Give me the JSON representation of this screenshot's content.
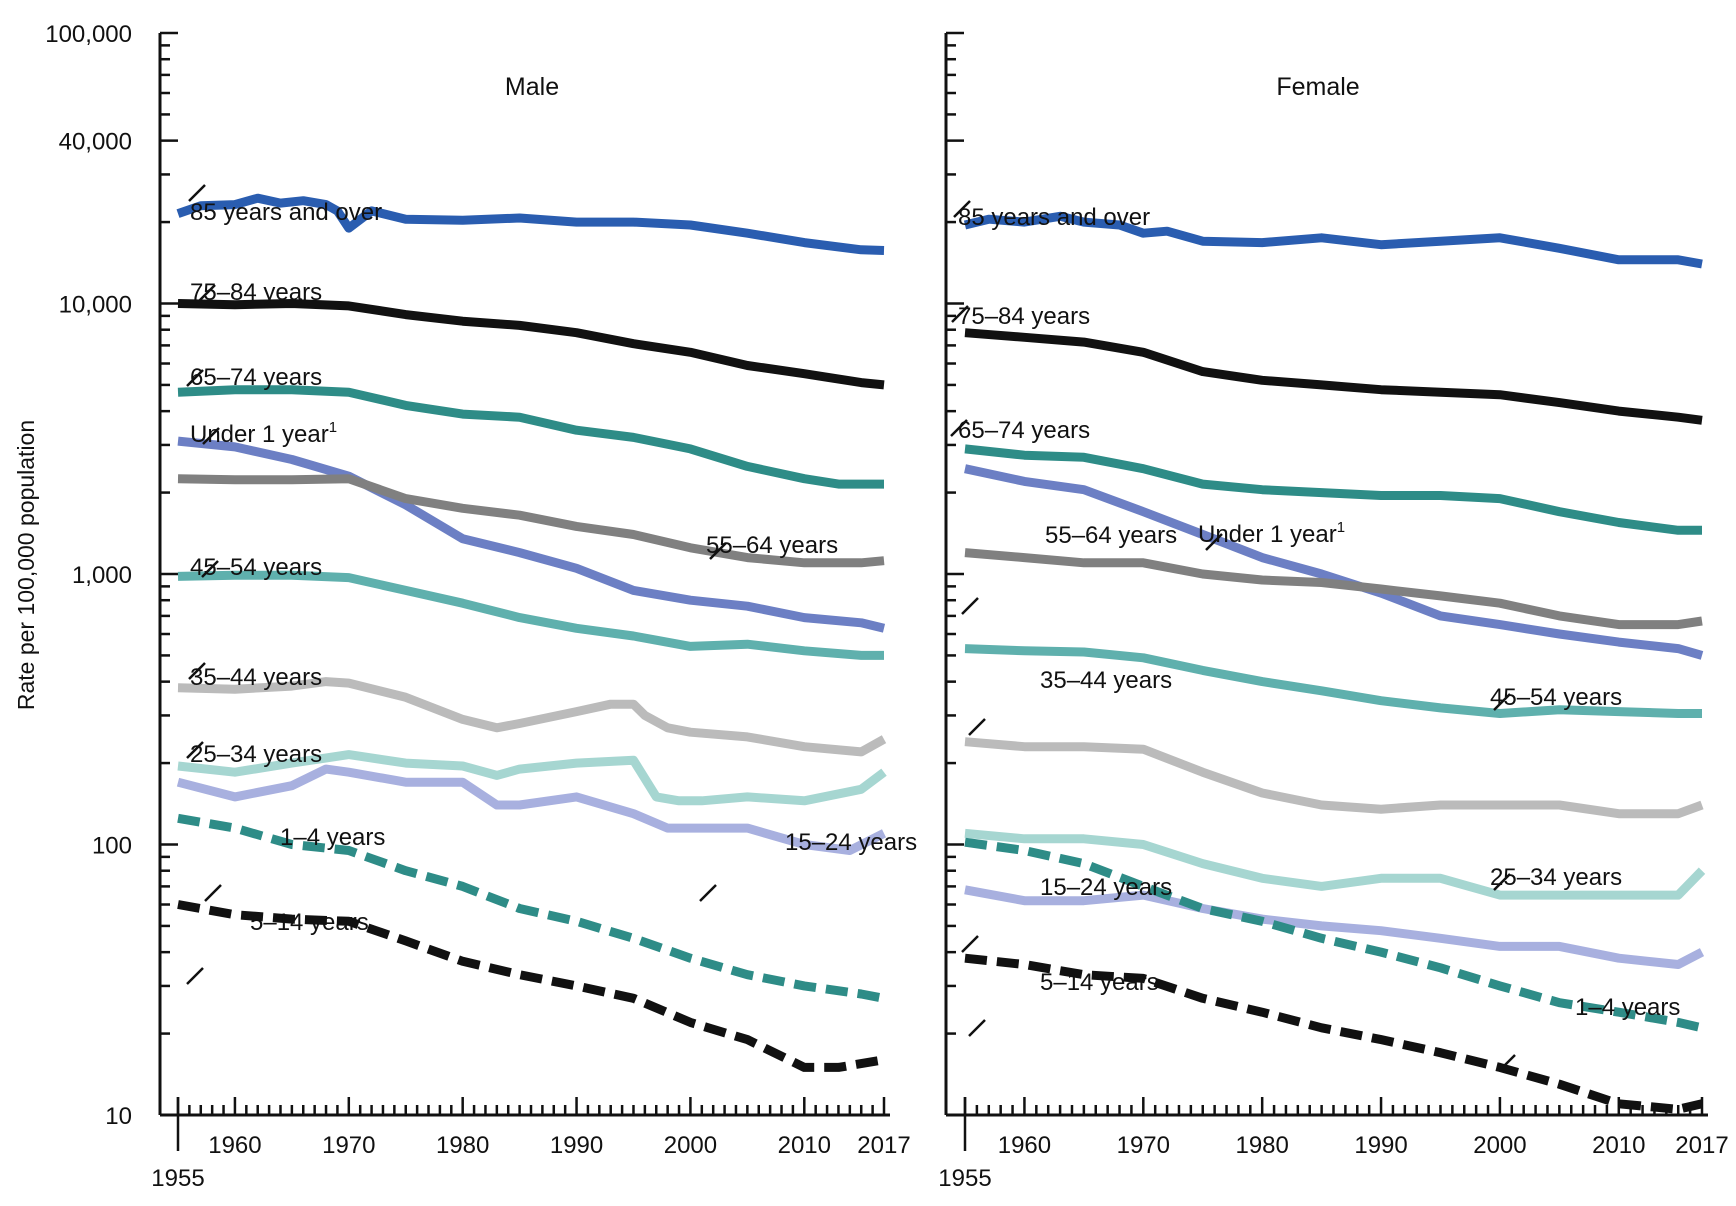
{
  "ylabel": "Rate per 100,000 population",
  "y_tick_labels": [
    "10",
    "100",
    "1,000",
    "10,000",
    "40,000",
    "100,000"
  ],
  "x_tick_labels": [
    "1955",
    "1960",
    "1970",
    "1980",
    "1990",
    "2000",
    "2010",
    "2017"
  ],
  "colors": {
    "85_and_over": "#2a5db0",
    "75_84": "#111111",
    "65_74": "#2e8c87",
    "55_64": "#808080",
    "45_54": "#5fb0ad",
    "35_44": "#bbbbbb",
    "25_34": "#a6d6d1",
    "15_24": "#a8b0df",
    "under_1": "#6c7fc4",
    "1_4": "#2e8c87",
    "5_14": "#111111"
  },
  "chart_data": [
    {
      "type": "line",
      "title": "Male",
      "ylabel": "Rate per 100,000 population",
      "yscale": "log",
      "xlim": [
        1955,
        2017
      ],
      "ylim": [
        10,
        100000
      ],
      "grid": false,
      "series": [
        {
          "name": "85 years and over",
          "style": "solid",
          "color_key": "85_and_over",
          "x": [
            1955,
            1957,
            1960,
            1962,
            1964,
            1966,
            1968,
            1969,
            1970,
            1972,
            1975,
            1980,
            1985,
            1990,
            1995,
            2000,
            2005,
            2010,
            2015,
            2017
          ],
          "y": [
            21500,
            23000,
            23200,
            24500,
            23500,
            24000,
            23200,
            22000,
            19000,
            22000,
            20500,
            20300,
            20700,
            20000,
            20000,
            19500,
            18200,
            16800,
            15800,
            15700
          ]
        },
        {
          "name": "75–84 years",
          "style": "solid",
          "color_key": "75_84",
          "x": [
            1955,
            1960,
            1965,
            1970,
            1975,
            1980,
            1985,
            1990,
            1995,
            2000,
            2005,
            2010,
            2015,
            2017
          ],
          "y": [
            10000,
            9900,
            10000,
            9800,
            9100,
            8600,
            8300,
            7800,
            7100,
            6600,
            5900,
            5500,
            5100,
            5000
          ]
        },
        {
          "name": "65–74 years",
          "style": "solid",
          "color_key": "65_74",
          "x": [
            1955,
            1960,
            1965,
            1970,
            1975,
            1980,
            1985,
            1990,
            1995,
            2000,
            2005,
            2010,
            2013,
            2017
          ],
          "y": [
            4700,
            4800,
            4800,
            4700,
            4200,
            3900,
            3800,
            3400,
            3200,
            2900,
            2500,
            2250,
            2150,
            2150
          ]
        },
        {
          "name": "Under 1 year¹",
          "style": "solid",
          "color_key": "under_1",
          "x": [
            1955,
            1960,
            1965,
            1970,
            1975,
            1980,
            1985,
            1990,
            1995,
            2000,
            2005,
            2010,
            2015,
            2017
          ],
          "y": [
            3100,
            2950,
            2650,
            2300,
            1800,
            1350,
            1200,
            1050,
            870,
            800,
            760,
            690,
            660,
            630
          ]
        },
        {
          "name": "55–64 years",
          "style": "solid",
          "color_key": "55_64",
          "x": [
            1955,
            1960,
            1965,
            1970,
            1975,
            1980,
            1985,
            1990,
            1995,
            2000,
            2005,
            2010,
            2015,
            2017
          ],
          "y": [
            2250,
            2230,
            2230,
            2250,
            1900,
            1750,
            1650,
            1500,
            1400,
            1250,
            1150,
            1100,
            1100,
            1120
          ]
        },
        {
          "name": "45–54 years",
          "style": "solid",
          "color_key": "45_54",
          "x": [
            1955,
            1960,
            1965,
            1970,
            1975,
            1980,
            1985,
            1990,
            1995,
            2000,
            2005,
            2010,
            2015,
            2017
          ],
          "y": [
            980,
            990,
            990,
            970,
            870,
            780,
            690,
            630,
            590,
            540,
            550,
            520,
            500,
            500
          ]
        },
        {
          "name": "35–44 years",
          "style": "solid",
          "color_key": "35_44",
          "x": [
            1955,
            1960,
            1965,
            1968,
            1970,
            1975,
            1980,
            1983,
            1985,
            1990,
            1993,
            1995,
            1996,
            1998,
            2000,
            2005,
            2010,
            2015,
            2017
          ],
          "y": [
            380,
            375,
            385,
            400,
            395,
            350,
            290,
            270,
            280,
            310,
            330,
            330,
            300,
            270,
            260,
            250,
            230,
            220,
            245
          ]
        },
        {
          "name": "25–34 years",
          "style": "solid",
          "color_key": "25_34",
          "x": [
            1955,
            1960,
            1965,
            1970,
            1975,
            1980,
            1983,
            1985,
            1990,
            1995,
            1997,
            1999,
            2001,
            2005,
            2010,
            2015,
            2017
          ],
          "y": [
            195,
            185,
            200,
            215,
            200,
            195,
            180,
            190,
            200,
            205,
            150,
            145,
            145,
            150,
            145,
            160,
            185
          ]
        },
        {
          "name": "15–24 years",
          "style": "solid",
          "color_key": "15_24",
          "x": [
            1955,
            1960,
            1965,
            1968,
            1970,
            1975,
            1980,
            1983,
            1985,
            1990,
            1995,
            1998,
            2000,
            2005,
            2010,
            2014,
            2017
          ],
          "y": [
            170,
            150,
            165,
            190,
            185,
            170,
            170,
            140,
            140,
            150,
            130,
            115,
            115,
            115,
            100,
            95,
            110
          ]
        },
        {
          "name": "1–4 years",
          "style": "dashed",
          "color_key": "1_4",
          "x": [
            1955,
            1960,
            1965,
            1970,
            1975,
            1980,
            1985,
            1990,
            1995,
            2000,
            2005,
            2010,
            2015,
            2017
          ],
          "y": [
            125,
            115,
            100,
            95,
            80,
            70,
            58,
            52,
            45,
            38,
            33,
            30,
            28,
            27
          ]
        },
        {
          "name": "5–14 years",
          "style": "dashed",
          "color_key": "5_14",
          "x": [
            1955,
            1960,
            1965,
            1970,
            1975,
            1980,
            1985,
            1990,
            1995,
            2000,
            2005,
            2010,
            2013,
            2017
          ],
          "y": [
            60,
            55,
            53,
            52,
            44,
            37,
            33,
            30,
            27,
            22,
            19,
            15,
            15,
            16
          ]
        }
      ]
    },
    {
      "type": "line",
      "title": "Female",
      "ylabel": "Rate per 100,000 population",
      "yscale": "log",
      "xlim": [
        1955,
        2017
      ],
      "ylim": [
        10,
        100000
      ],
      "grid": false,
      "series": [
        {
          "name": "85 years and over",
          "style": "solid",
          "color_key": "85_and_over",
          "x": [
            1955,
            1957,
            1960,
            1963,
            1965,
            1968,
            1970,
            1972,
            1975,
            1980,
            1985,
            1990,
            1995,
            2000,
            2005,
            2010,
            2015,
            2017
          ],
          "y": [
            19500,
            20500,
            20000,
            21000,
            20000,
            19500,
            18200,
            18500,
            17000,
            16800,
            17500,
            16500,
            17000,
            17500,
            16000,
            14500,
            14500,
            14000
          ]
        },
        {
          "name": "75–84 years",
          "style": "solid",
          "color_key": "75_84",
          "x": [
            1955,
            1960,
            1965,
            1970,
            1975,
            1980,
            1985,
            1990,
            1995,
            2000,
            2005,
            2010,
            2015,
            2017
          ],
          "y": [
            7800,
            7500,
            7200,
            6600,
            5600,
            5200,
            5000,
            4800,
            4700,
            4600,
            4300,
            4000,
            3800,
            3700
          ]
        },
        {
          "name": "65–74 years",
          "style": "solid",
          "color_key": "65_74",
          "x": [
            1955,
            1960,
            1965,
            1970,
            1975,
            1980,
            1985,
            1990,
            1995,
            2000,
            2005,
            2010,
            2015,
            2017
          ],
          "y": [
            2900,
            2750,
            2700,
            2450,
            2150,
            2050,
            2000,
            1950,
            1950,
            1900,
            1700,
            1550,
            1450,
            1450
          ]
        },
        {
          "name": "Under 1 year¹",
          "style": "solid",
          "color_key": "under_1",
          "x": [
            1955,
            1960,
            1965,
            1970,
            1975,
            1980,
            1985,
            1990,
            1995,
            2000,
            2005,
            2010,
            2015,
            2017
          ],
          "y": [
            2450,
            2200,
            2050,
            1700,
            1400,
            1150,
            1000,
            850,
            700,
            650,
            600,
            560,
            530,
            500
          ]
        },
        {
          "name": "55–64 years",
          "style": "solid",
          "color_key": "55_64",
          "x": [
            1955,
            1960,
            1965,
            1970,
            1975,
            1980,
            1985,
            1990,
            1995,
            2000,
            2005,
            2010,
            2015,
            2017
          ],
          "y": [
            1200,
            1150,
            1100,
            1100,
            1000,
            950,
            930,
            880,
            830,
            780,
            700,
            650,
            650,
            670
          ]
        },
        {
          "name": "45–54 years",
          "style": "solid",
          "color_key": "45_54",
          "x": [
            1955,
            1960,
            1965,
            1970,
            1975,
            1980,
            1985,
            1990,
            1995,
            2000,
            2005,
            2010,
            2015,
            2017
          ],
          "y": [
            530,
            520,
            515,
            490,
            440,
            400,
            370,
            340,
            320,
            305,
            315,
            310,
            305,
            305
          ]
        },
        {
          "name": "35–44 years",
          "style": "solid",
          "color_key": "35_44",
          "x": [
            1955,
            1960,
            1965,
            1970,
            1975,
            1980,
            1985,
            1990,
            1995,
            2000,
            2005,
            2010,
            2015,
            2017
          ],
          "y": [
            240,
            230,
            230,
            225,
            185,
            155,
            140,
            135,
            140,
            140,
            140,
            130,
            130,
            140
          ]
        },
        {
          "name": "25–34 years",
          "style": "solid",
          "color_key": "25_34",
          "x": [
            1955,
            1960,
            1965,
            1970,
            1975,
            1980,
            1985,
            1990,
            1995,
            2000,
            2005,
            2010,
            2015,
            2017
          ],
          "y": [
            110,
            105,
            105,
            100,
            85,
            75,
            70,
            75,
            75,
            65,
            65,
            65,
            65,
            80
          ]
        },
        {
          "name": "15–24 years",
          "style": "solid",
          "color_key": "15_24",
          "x": [
            1955,
            1960,
            1965,
            1970,
            1975,
            1980,
            1985,
            1990,
            1995,
            2000,
            2005,
            2010,
            2015,
            2017
          ],
          "y": [
            68,
            62,
            62,
            65,
            58,
            53,
            50,
            48,
            45,
            42,
            42,
            38,
            36,
            40
          ]
        },
        {
          "name": "1–4 years",
          "style": "dashed",
          "color_key": "1_4",
          "x": [
            1955,
            1960,
            1965,
            1970,
            1975,
            1980,
            1985,
            1990,
            1995,
            2000,
            2005,
            2010,
            2015,
            2017
          ],
          "y": [
            102,
            95,
            85,
            70,
            58,
            52,
            45,
            40,
            35,
            30,
            26,
            24,
            22,
            21
          ]
        },
        {
          "name": "5–14 years",
          "style": "dashed",
          "color_key": "5_14",
          "x": [
            1955,
            1960,
            1965,
            1970,
            1975,
            1980,
            1985,
            1990,
            1995,
            2000,
            2005,
            2010,
            2015,
            2017
          ],
          "y": [
            38,
            36,
            33,
            32,
            27,
            24,
            21,
            19,
            17,
            15,
            13,
            11,
            10.5,
            11
          ]
        }
      ]
    }
  ]
}
